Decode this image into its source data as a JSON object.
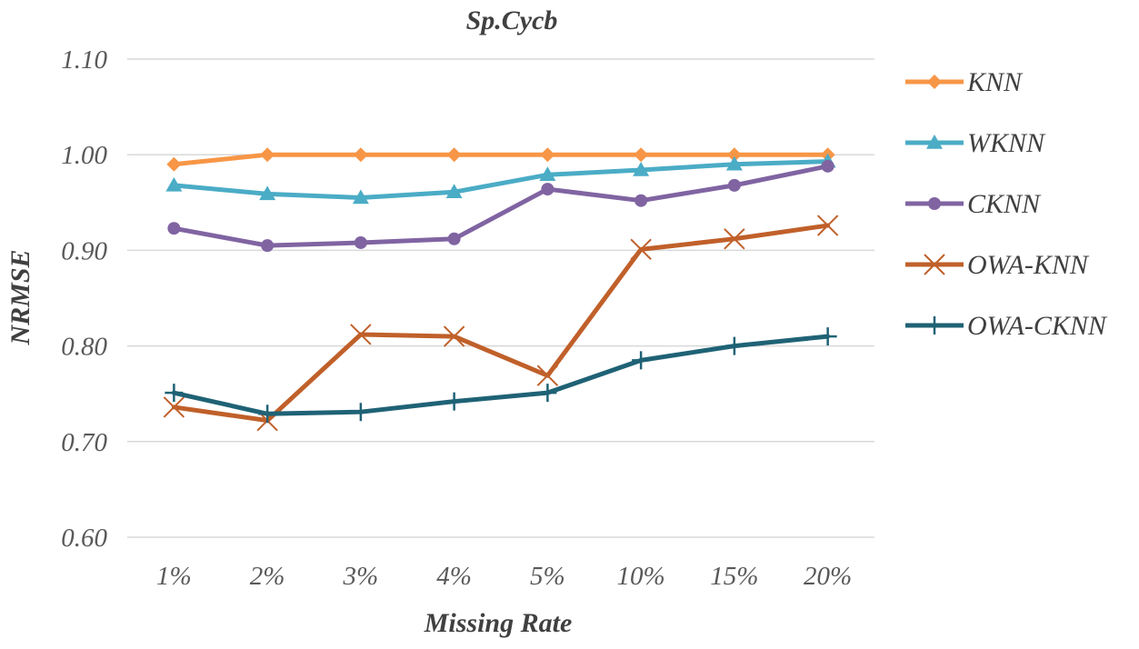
{
  "chart_data": {
    "type": "line",
    "title": "Sp.Cycb",
    "xlabel": "Missing Rate",
    "ylabel": "NRMSE",
    "categories": [
      "1%",
      "2%",
      "3%",
      "4%",
      "5%",
      "10%",
      "15%",
      "20%"
    ],
    "ylim": [
      0.6,
      1.1
    ],
    "yticks": [
      "0.60",
      "0.70",
      "0.80",
      "0.90",
      "1.00",
      "1.10"
    ],
    "grid": true,
    "legend_position": "right",
    "series": [
      {
        "name": "KNN",
        "color": "#F79646",
        "marker": "diamond",
        "values": [
          0.99,
          1.0,
          1.0,
          1.0,
          1.0,
          1.0,
          1.0,
          1.0
        ]
      },
      {
        "name": "WKNN",
        "color": "#4BACC6",
        "marker": "triangle",
        "values": [
          0.968,
          0.959,
          0.955,
          0.961,
          0.979,
          0.984,
          0.99,
          0.993
        ]
      },
      {
        "name": "CKNN",
        "color": "#8064A2",
        "marker": "circle",
        "values": [
          0.923,
          0.905,
          0.908,
          0.912,
          0.964,
          0.952,
          0.968,
          0.988
        ]
      },
      {
        "name": "OWA-KNN",
        "color": "#C0602A",
        "marker": "x",
        "values": [
          0.736,
          0.722,
          0.812,
          0.81,
          0.769,
          0.901,
          0.912,
          0.926
        ]
      },
      {
        "name": "OWA-CKNN",
        "color": "#1F6275",
        "marker": "plus",
        "values": [
          0.751,
          0.729,
          0.731,
          0.742,
          0.751,
          0.785,
          0.8,
          0.81
        ]
      }
    ]
  }
}
